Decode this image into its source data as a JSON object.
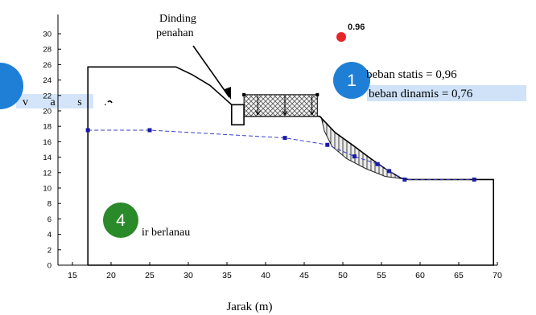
{
  "chart_data": {
    "type": "line",
    "xlabel": "Jarak (m)",
    "ylabel": "",
    "xlim": [
      15,
      70
    ],
    "ylim": [
      0,
      30
    ],
    "xticks": [
      15,
      20,
      25,
      30,
      35,
      40,
      45,
      50,
      55,
      60,
      65,
      70
    ],
    "yticks": [
      0,
      2,
      4,
      6,
      8,
      10,
      12,
      14,
      16,
      18,
      20,
      22,
      24,
      26,
      28,
      30
    ],
    "slope_profile": {
      "points": [
        [
          17,
          0
        ],
        [
          17,
          25.7
        ],
        [
          28.4,
          25.7
        ],
        [
          30.5,
          24.7
        ],
        [
          32.8,
          23.3
        ],
        [
          34.6,
          21.7
        ],
        [
          35.6,
          20.8
        ],
        [
          36.2,
          20.8
        ],
        [
          36.2,
          19.3
        ],
        [
          47,
          19.3
        ],
        [
          49,
          17.2
        ],
        [
          51.5,
          15.4
        ],
        [
          53.5,
          13.9
        ],
        [
          55.5,
          12.5
        ],
        [
          57.5,
          11.3
        ],
        [
          58.5,
          11.1
        ],
        [
          69.5,
          11.1
        ],
        [
          69.5,
          0
        ],
        [
          17,
          0
        ]
      ]
    },
    "retaining_wall": {
      "label": "Dinding penahan",
      "points": [
        [
          35.6,
          20.8
        ],
        [
          37.2,
          20.8
        ],
        [
          37.2,
          18.2
        ],
        [
          35.6,
          18.2
        ],
        [
          35.6,
          20.8
        ]
      ]
    },
    "surcharge_load": {
      "x": [
        37.2,
        46.7
      ],
      "y": [
        19.3,
        22.1
      ]
    },
    "water_table": {
      "label": "ir berlanau",
      "series": [
        {
          "x": 17,
          "y": 17.5
        },
        {
          "x": 25,
          "y": 17.5
        },
        {
          "x": 42.5,
          "y": 16.5
        },
        {
          "x": 48,
          "y": 15.6
        },
        {
          "x": 51.5,
          "y": 14.1
        },
        {
          "x": 54.5,
          "y": 13.1
        },
        {
          "x": 56,
          "y": 12.2
        },
        {
          "x": 58,
          "y": 11.1
        },
        {
          "x": 67,
          "y": 11.1
        }
      ]
    },
    "slip_surface_bottom": [
      [
        47.2,
        19.2
      ],
      [
        47.6,
        17.4
      ],
      [
        48.6,
        15.4
      ],
      [
        50.5,
        13.8
      ],
      [
        53,
        12.5
      ],
      [
        55.5,
        11.5
      ],
      [
        58.5,
        11.1
      ]
    ],
    "annotations": {
      "fs_value": "0.96",
      "static_label": "beban statis = 0,96",
      "dynamic_label": "beban dinamis = 0,76",
      "left_label": "v a s .",
      "badge_1": "1",
      "badge_4": "4"
    },
    "colors": {
      "water_line": "#3b3fc9",
      "markers": "#1a1aa8",
      "badge": "#1f7fd6",
      "badge_green": "#2a8a2a",
      "red_dot": "#e8242b",
      "highlight": "#cfe2f8"
    }
  }
}
